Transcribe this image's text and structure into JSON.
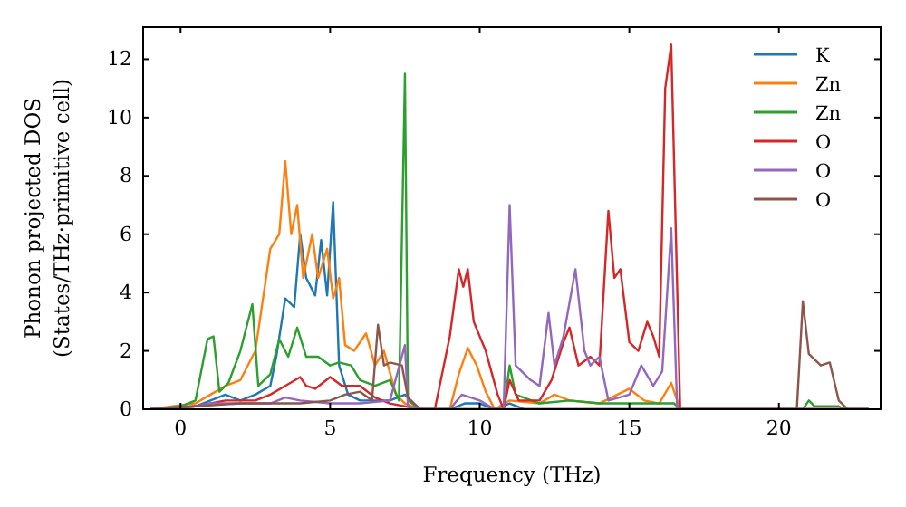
{
  "chart_data": {
    "type": "line",
    "xlabel": "Frequency (THz)",
    "ylabel": "Phonon projected DOS\n(States/THz·primitive cell)",
    "xlim": [
      -1.25,
      23.4
    ],
    "ylim": [
      0,
      13.1
    ],
    "xticks": [
      0,
      5,
      10,
      15,
      20
    ],
    "yticks": [
      0,
      2,
      4,
      6,
      8,
      10,
      12
    ],
    "grid": false,
    "legend": "top right",
    "series": [
      {
        "name": "K",
        "color": "#1f77b4",
        "x": [
          -1,
          0.5,
          1,
          1.5,
          2,
          2.5,
          3,
          3.2,
          3.5,
          3.8,
          4,
          4.2,
          4.5,
          4.7,
          4.9,
          5.1,
          5.3,
          5.6,
          6,
          7,
          7.5,
          8,
          9,
          9.5,
          10,
          10.5,
          11,
          11.5,
          23
        ],
        "values": [
          0,
          0.1,
          0.3,
          0.5,
          0.3,
          0.5,
          0.8,
          1.8,
          3.8,
          3.5,
          6,
          4.5,
          3.9,
          5.8,
          3.9,
          7.1,
          1.5,
          0.5,
          0.3,
          0.3,
          0.5,
          0,
          0,
          0.2,
          0.2,
          0,
          0.2,
          0,
          0
        ]
      },
      {
        "name": "Zn",
        "color": "#ff7f0e",
        "x": [
          -1,
          0.5,
          1,
          1.5,
          2,
          2.5,
          3,
          3.3,
          3.5,
          3.7,
          3.9,
          4.1,
          4.4,
          4.6,
          4.9,
          5.1,
          5.3,
          5.5,
          5.8,
          6.2,
          6.5,
          6.8,
          7.2,
          7.5,
          8,
          9,
          9.3,
          9.6,
          9.9,
          10.2,
          10.5,
          11,
          12,
          12.5,
          13,
          14,
          15,
          15.5,
          16,
          16.4,
          16.7,
          23
        ],
        "values": [
          0,
          0.2,
          0.5,
          0.8,
          1,
          2,
          5.5,
          6,
          8.5,
          6,
          7,
          4.5,
          6,
          4.5,
          5.5,
          3.8,
          4.5,
          2.2,
          2,
          2.6,
          1.5,
          2,
          0.5,
          0.2,
          0,
          0,
          1.2,
          2.1,
          1.5,
          0.6,
          0,
          0.3,
          0.2,
          0.5,
          0.3,
          0.2,
          0.7,
          0.3,
          0.2,
          0.9,
          0,
          0
        ]
      },
      {
        "name": "Zn",
        "color": "#2ca02c",
        "x": [
          -1,
          0,
          0.5,
          0.9,
          1.1,
          1.3,
          1.6,
          2,
          2.4,
          2.6,
          3,
          3.3,
          3.6,
          3.9,
          4.2,
          4.6,
          5,
          5.3,
          5.7,
          6,
          6.5,
          7,
          7.3,
          7.5,
          7.6,
          8,
          10.8,
          11,
          11.2,
          12,
          13,
          14,
          15,
          16.5,
          16.7,
          20.8,
          21,
          21.2,
          22,
          22.2,
          23
        ],
        "values": [
          0,
          0.1,
          0.3,
          2.4,
          2.5,
          0.6,
          0.9,
          2,
          3.6,
          0.8,
          1.2,
          2.4,
          1.8,
          2.8,
          1.8,
          1.8,
          1.5,
          1.6,
          1.5,
          1,
          0.8,
          1,
          0.3,
          11.5,
          0.3,
          0,
          0,
          1.5,
          0.5,
          0.2,
          0.3,
          0.2,
          0.2,
          0.2,
          0,
          0,
          0.3,
          0.1,
          0.1,
          0,
          0
        ]
      },
      {
        "name": "O",
        "color": "#d62728",
        "x": [
          -1,
          0.5,
          1.5,
          2.5,
          3,
          3.5,
          4,
          4.2,
          4.5,
          5,
          5.4,
          6,
          6.5,
          7,
          8,
          8.5,
          9,
          9.3,
          9.45,
          9.6,
          9.8,
          10.2,
          10.6,
          10.8,
          11,
          11.3,
          12,
          12.4,
          12.8,
          13,
          13.3,
          13.7,
          14,
          14.3,
          14.5,
          14.7,
          15,
          15.3,
          15.6,
          15.8,
          16,
          16.2,
          16.4,
          16.7,
          23
        ],
        "values": [
          0,
          0.1,
          0.3,
          0.3,
          0.5,
          0.8,
          1.1,
          0.8,
          0.7,
          1.1,
          0.8,
          0.8,
          0.4,
          0.2,
          0,
          0,
          2.5,
          4.8,
          4.2,
          4.8,
          3,
          2,
          0.5,
          0,
          1,
          0.3,
          0.3,
          1,
          2.3,
          2.8,
          1.5,
          1.8,
          1.5,
          6.8,
          4.5,
          4.8,
          2.3,
          2,
          3,
          2.5,
          1.8,
          11,
          12.5,
          0,
          0
        ]
      },
      {
        "name": "O",
        "color": "#9467bd",
        "x": [
          -1,
          0.5,
          1,
          2,
          3,
          3.5,
          4,
          5,
          6,
          7,
          7.5,
          7.6,
          8,
          9,
          9.4,
          10,
          10.5,
          10.8,
          11,
          11.2,
          11.7,
          12,
          12.3,
          12.5,
          12.8,
          13.2,
          13.5,
          13.7,
          14,
          14.3,
          15,
          15.4,
          15.8,
          16.1,
          16.4,
          16.6,
          23
        ],
        "values": [
          0,
          0.1,
          0.2,
          0.2,
          0.2,
          0.4,
          0.3,
          0.2,
          0.2,
          0.3,
          2.2,
          0.1,
          0,
          0,
          0.5,
          0.3,
          0,
          0,
          7,
          1.5,
          1,
          0.8,
          3.3,
          1.5,
          2.5,
          4.8,
          2,
          1.5,
          1.8,
          0.3,
          0.5,
          1.5,
          0.8,
          1.3,
          6.2,
          0,
          0
        ]
      },
      {
        "name": "O",
        "color": "#8c564b",
        "x": [
          -1,
          0.5,
          2,
          4,
          5,
          5.5,
          6,
          6.4,
          6.6,
          6.8,
          7,
          7.4,
          7.6,
          8,
          20.6,
          20.8,
          21,
          21.4,
          21.7,
          22,
          22.3,
          23
        ],
        "values": [
          0,
          0.1,
          0.2,
          0.2,
          0.3,
          0.5,
          0.6,
          0.3,
          2.9,
          1.5,
          1.6,
          1.5,
          0.4,
          0,
          0,
          3.7,
          1.9,
          1.5,
          1.6,
          0.3,
          0,
          0
        ]
      }
    ]
  }
}
